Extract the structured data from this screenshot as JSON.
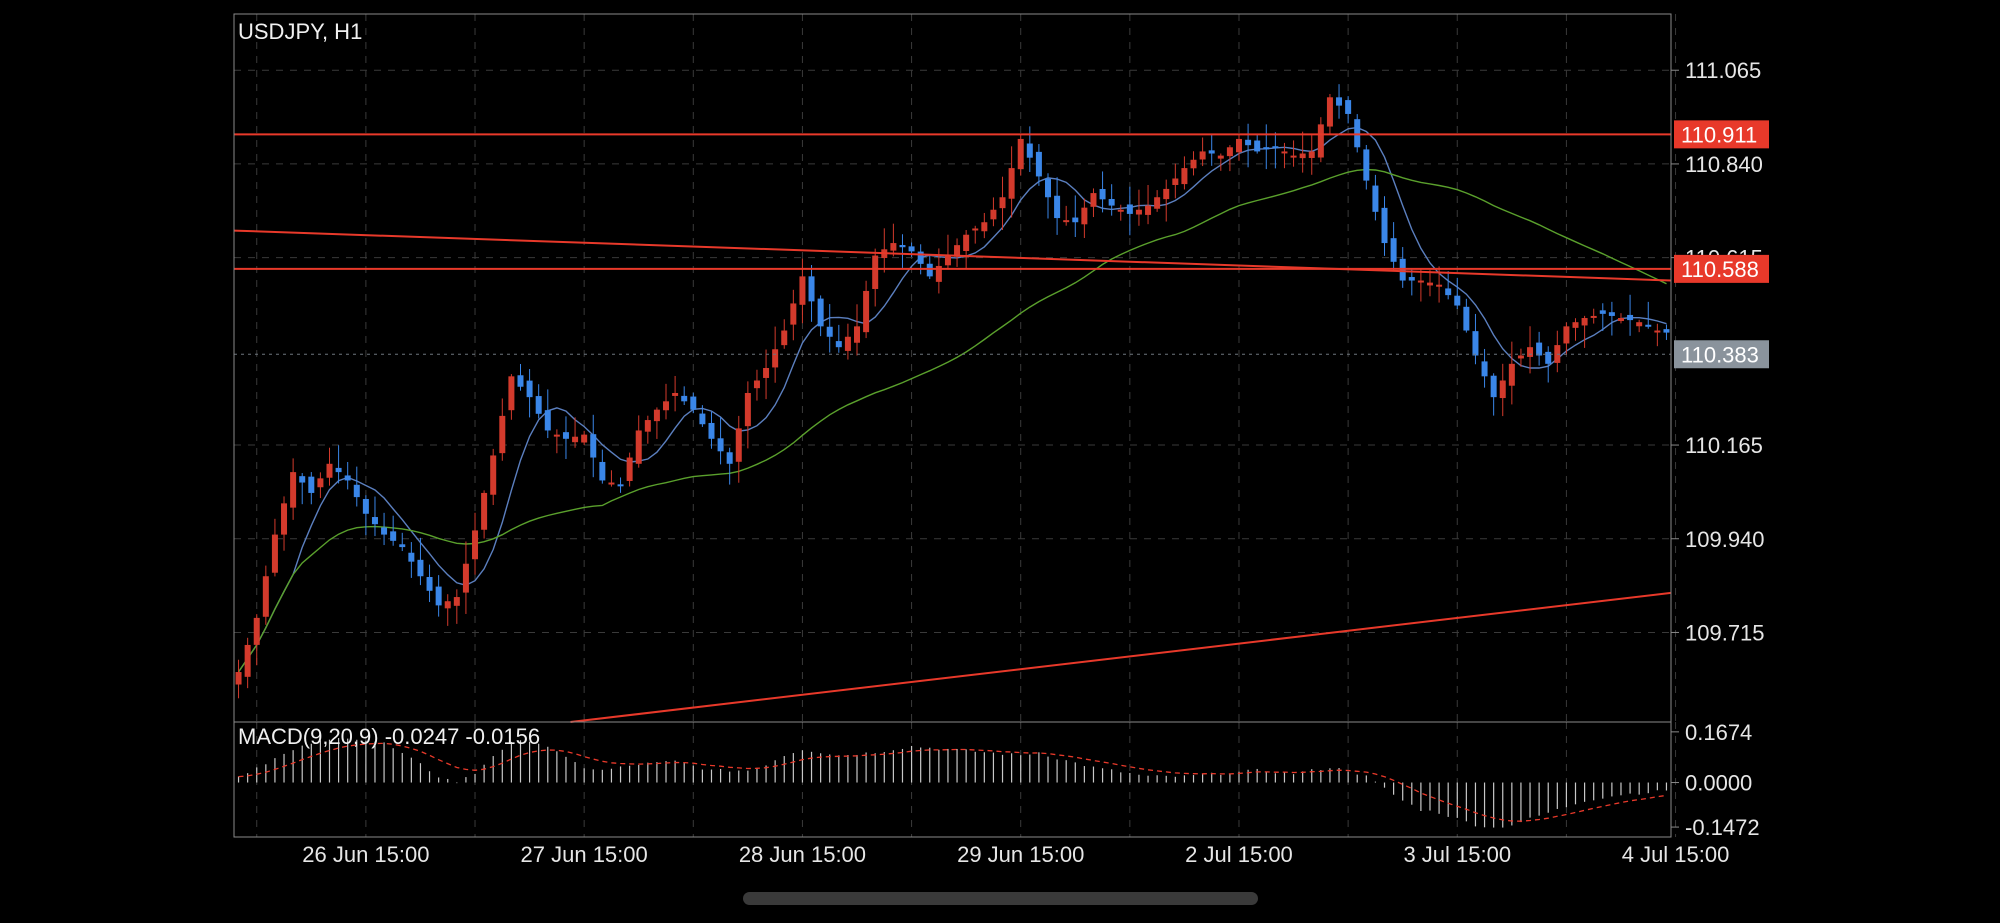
{
  "chart_data": {
    "type": "candlestick",
    "title": "USDJPY, H1",
    "price_ticks": [
      "111.065",
      "110.840",
      "110.615",
      "110.165",
      "109.940",
      "109.715"
    ],
    "price_ticks_values": [
      111.065,
      110.84,
      110.615,
      110.165,
      109.94,
      109.715
    ],
    "ylim": [
      109.5,
      111.2
    ],
    "x_ticks": [
      "26 Jun 15:00",
      "27 Jun 15:00",
      "28 Jun 15:00",
      "29 Jun 15:00",
      "2 Jul 15:00",
      "3 Jul 15:00",
      "4 Jul 15:00"
    ],
    "x_ticks_index": [
      14,
      38,
      62,
      86,
      110,
      134,
      158
    ],
    "bar_count": 158,
    "badges": [
      {
        "label": "110.911",
        "value": 110.911,
        "color": "#e8392a"
      },
      {
        "label": "110.588",
        "value": 110.588,
        "color": "#e8392a"
      },
      {
        "label": "110.383",
        "value": 110.383,
        "color": "#8a939c"
      }
    ],
    "horizontal_lines": [
      {
        "value": 110.911,
        "color": "#e8392a",
        "style": "solid"
      },
      {
        "value": 110.588,
        "color": "#e8392a",
        "style": "solid"
      },
      {
        "value": 110.383,
        "color": "#6e767e",
        "style": "dotted"
      }
    ],
    "trend_lines": [
      {
        "from": {
          "bar": 0,
          "price": 110.68
        },
        "to": {
          "bar": 158,
          "price": 110.56
        },
        "color": "#e8392a"
      },
      {
        "from": {
          "bar": 37,
          "price": 109.5
        },
        "to": {
          "bar": 158,
          "price": 109.81
        },
        "color": "#e8392a"
      }
    ],
    "price_path": [
      [
        0,
        109.62
      ],
      [
        2,
        109.75
      ],
      [
        4,
        109.95
      ],
      [
        6,
        110.1
      ],
      [
        8,
        110.05
      ],
      [
        10,
        110.12
      ],
      [
        12,
        110.08
      ],
      [
        14,
        110.0
      ],
      [
        16,
        109.95
      ],
      [
        18,
        109.92
      ],
      [
        20,
        109.85
      ],
      [
        22,
        109.78
      ],
      [
        24,
        109.8
      ],
      [
        26,
        109.96
      ],
      [
        28,
        110.14
      ],
      [
        30,
        110.33
      ],
      [
        32,
        110.28
      ],
      [
        34,
        110.2
      ],
      [
        36,
        110.18
      ],
      [
        38,
        110.19
      ],
      [
        40,
        110.08
      ],
      [
        42,
        110.07
      ],
      [
        44,
        110.2
      ],
      [
        46,
        110.25
      ],
      [
        48,
        110.29
      ],
      [
        50,
        110.25
      ],
      [
        52,
        110.18
      ],
      [
        54,
        110.12
      ],
      [
        56,
        110.29
      ],
      [
        58,
        110.35
      ],
      [
        60,
        110.44
      ],
      [
        62,
        110.57
      ],
      [
        64,
        110.45
      ],
      [
        66,
        110.4
      ],
      [
        68,
        110.45
      ],
      [
        70,
        110.62
      ],
      [
        72,
        110.65
      ],
      [
        74,
        110.63
      ],
      [
        76,
        110.57
      ],
      [
        78,
        110.62
      ],
      [
        80,
        110.67
      ],
      [
        82,
        110.7
      ],
      [
        84,
        110.76
      ],
      [
        86,
        110.9
      ],
      [
        88,
        110.81
      ],
      [
        90,
        110.71
      ],
      [
        92,
        110.7
      ],
      [
        94,
        110.77
      ],
      [
        96,
        110.74
      ],
      [
        98,
        110.72
      ],
      [
        100,
        110.74
      ],
      [
        102,
        110.78
      ],
      [
        104,
        110.83
      ],
      [
        106,
        110.87
      ],
      [
        108,
        110.86
      ],
      [
        110,
        110.9
      ],
      [
        112,
        110.87
      ],
      [
        114,
        110.88
      ],
      [
        116,
        110.86
      ],
      [
        118,
        110.87
      ],
      [
        120,
        111.0
      ],
      [
        122,
        110.96
      ],
      [
        124,
        110.8
      ],
      [
        126,
        110.65
      ],
      [
        128,
        110.56
      ],
      [
        130,
        110.56
      ],
      [
        132,
        110.55
      ],
      [
        134,
        110.5
      ],
      [
        136,
        110.38
      ],
      [
        138,
        110.28
      ],
      [
        140,
        110.36
      ],
      [
        142,
        110.4
      ],
      [
        144,
        110.36
      ],
      [
        146,
        110.45
      ],
      [
        148,
        110.47
      ],
      [
        150,
        110.48
      ],
      [
        152,
        110.47
      ],
      [
        154,
        110.46
      ],
      [
        156,
        110.44
      ],
      [
        158,
        110.43
      ]
    ],
    "candle_colors": {
      "up": "#d33a2c",
      "down": "#3a86e8"
    },
    "moving_averages": [
      {
        "color": "#5b7fbf",
        "lag": 6
      },
      {
        "color": "#5aa02c",
        "lag": 40
      }
    ],
    "macd": {
      "label": "MACD(9,20,9) -0.0247 -0.0156",
      "ticks": [
        "0.1674",
        "0.0000",
        "-0.1472"
      ],
      "ticks_values": [
        0.1674,
        0.0,
        -0.1472
      ],
      "ylim": [
        -0.18,
        0.2
      ],
      "histogram_color": "#c8c8c8",
      "signal_color": "#e8392a",
      "histogram_path": [
        [
          0,
          0.02
        ],
        [
          4,
          0.08
        ],
        [
          8,
          0.13
        ],
        [
          12,
          0.15
        ],
        [
          16,
          0.13
        ],
        [
          20,
          0.06
        ],
        [
          22,
          0.02
        ],
        [
          24,
          0.0
        ],
        [
          26,
          0.03
        ],
        [
          28,
          0.09
        ],
        [
          30,
          0.13
        ],
        [
          32,
          0.14
        ],
        [
          34,
          0.12
        ],
        [
          36,
          0.08
        ],
        [
          38,
          0.05
        ],
        [
          40,
          0.04
        ],
        [
          44,
          0.06
        ],
        [
          48,
          0.07
        ],
        [
          52,
          0.04
        ],
        [
          56,
          0.04
        ],
        [
          58,
          0.06
        ],
        [
          60,
          0.09
        ],
        [
          62,
          0.11
        ],
        [
          66,
          0.09
        ],
        [
          70,
          0.1
        ],
        [
          74,
          0.12
        ],
        [
          78,
          0.11
        ],
        [
          82,
          0.1
        ],
        [
          86,
          0.09
        ],
        [
          88,
          0.1
        ],
        [
          90,
          0.08
        ],
        [
          94,
          0.05
        ],
        [
          98,
          0.03
        ],
        [
          100,
          0.02
        ],
        [
          104,
          0.02
        ],
        [
          108,
          0.03
        ],
        [
          112,
          0.04
        ],
        [
          116,
          0.03
        ],
        [
          120,
          0.05
        ],
        [
          122,
          0.04
        ],
        [
          124,
          0.02
        ],
        [
          126,
          -0.02
        ],
        [
          128,
          -0.06
        ],
        [
          130,
          -0.09
        ],
        [
          132,
          -0.1
        ],
        [
          134,
          -0.12
        ],
        [
          136,
          -0.14
        ],
        [
          138,
          -0.15
        ],
        [
          140,
          -0.14
        ],
        [
          142,
          -0.12
        ],
        [
          144,
          -0.1
        ],
        [
          146,
          -0.08
        ],
        [
          148,
          -0.06
        ],
        [
          150,
          -0.05
        ],
        [
          152,
          -0.04
        ],
        [
          156,
          -0.03
        ],
        [
          158,
          -0.02
        ]
      ]
    }
  }
}
